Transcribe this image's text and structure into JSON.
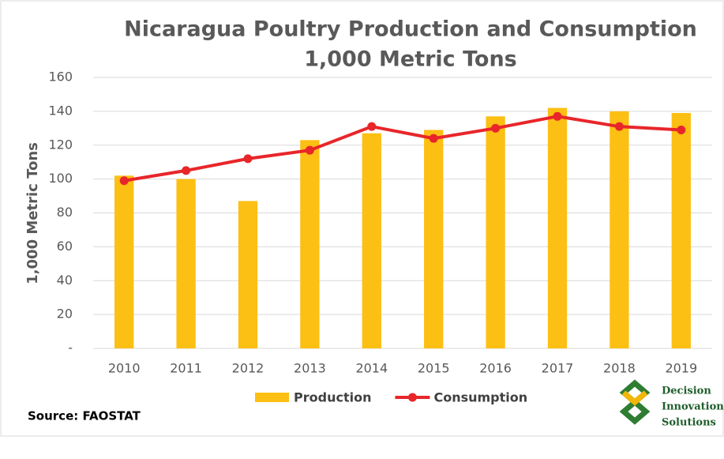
{
  "chart_data": {
    "type": "bar_line",
    "title": "Nicaragua Poultry Production and Consumption",
    "subtitle": "1,000 Metric Tons",
    "y_label": "1,000 Metric Tons",
    "categories": [
      "2010",
      "2011",
      "2012",
      "2013",
      "2014",
      "2015",
      "2016",
      "2017",
      "2018",
      "2019"
    ],
    "series": [
      {
        "name": "Production",
        "type": "bar",
        "color": "#fcbf14",
        "values": [
          102,
          100,
          87,
          123,
          127,
          129,
          137,
          142,
          140,
          139
        ]
      },
      {
        "name": "Consumption",
        "type": "line",
        "color": "#e8262a",
        "values": [
          99,
          105,
          112,
          117,
          131,
          124,
          130,
          137,
          131,
          129
        ]
      }
    ],
    "ylim": [
      0,
      160
    ],
    "yticks": [
      {
        "value": 0,
        "label": "-"
      },
      20,
      40,
      60,
      80,
      100,
      120,
      140,
      160
    ],
    "grid": true,
    "legend": "bottom",
    "source": "Source: FAOSTAT",
    "logo_text": [
      "Decision",
      "Innovation",
      "Solutions"
    ]
  }
}
